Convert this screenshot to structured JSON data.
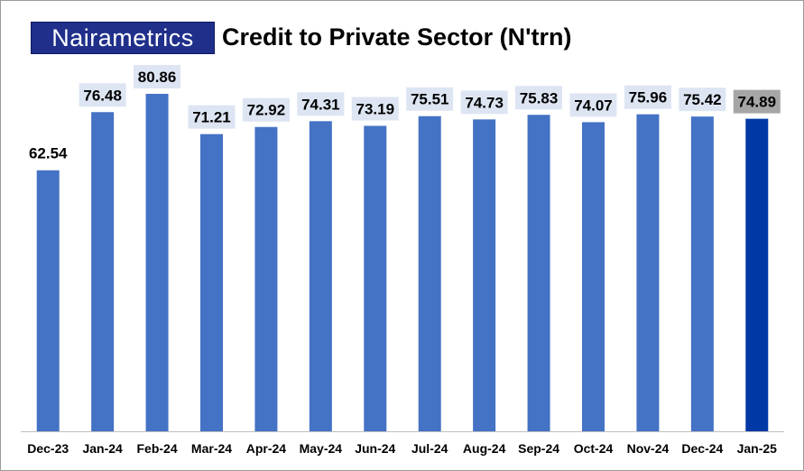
{
  "logo": {
    "text": "Nairametrics"
  },
  "chart_data": {
    "type": "bar",
    "title": "Credit to Private Sector (N'trn)",
    "xlabel": "",
    "ylabel": "",
    "categories": [
      "Dec-23",
      "Jan-24",
      "Feb-24",
      "Mar-24",
      "Apr-24",
      "May-24",
      "Jun-24",
      "Jul-24",
      "Aug-24",
      "Sep-24",
      "Oct-24",
      "Nov-24",
      "Dec-24",
      "Jan-25"
    ],
    "values": [
      62.54,
      76.48,
      80.86,
      71.21,
      72.92,
      74.31,
      73.19,
      75.51,
      74.73,
      75.83,
      74.07,
      75.96,
      75.42,
      74.89
    ],
    "ylim": [
      0,
      80.86
    ],
    "grid": false,
    "legend": "none",
    "bar_color": "#4472c4",
    "highlight_index": 13,
    "highlight_color": "#0039a6",
    "label_bg_color": "#dde5f3",
    "highlight_label_bg_color": "#a6a6a6"
  }
}
